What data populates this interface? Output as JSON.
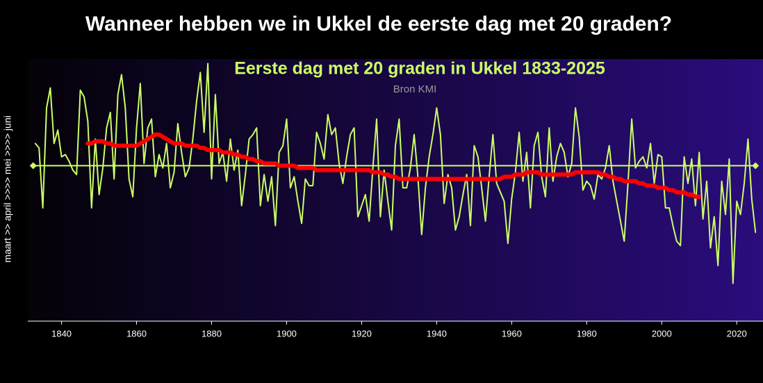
{
  "chart_data": {
    "type": "line",
    "title": "Wanneer hebben we in Ukkel de eerste dag met 20 graden?",
    "subtitle": "Eerste dag met 20 graden in Ukkel 1833-2025",
    "source": "Bron KMI",
    "y_label": "maart >> april >>>> mei >>>> juni",
    "xlim": [
      1831,
      2027
    ],
    "ylim": [
      47,
      165
    ],
    "xticks": [
      1840,
      1860,
      1880,
      1900,
      1920,
      1940,
      1960,
      1980,
      2000,
      2020
    ],
    "reference_line": 117,
    "reference_color": "#ccff66",
    "series": [
      {
        "color": "#ccff66",
        "x": [
          1833,
          1834,
          1835,
          1836,
          1837,
          1838,
          1839,
          1840,
          1841,
          1842,
          1843,
          1844,
          1845,
          1846,
          1847,
          1848,
          1849,
          1850,
          1851,
          1852,
          1853,
          1854,
          1855,
          1856,
          1857,
          1858,
          1859,
          1860,
          1861,
          1862,
          1863,
          1864,
          1865,
          1866,
          1867,
          1868,
          1869,
          1870,
          1871,
          1872,
          1873,
          1874,
          1875,
          1876,
          1877,
          1878,
          1879,
          1880,
          1881,
          1882,
          1883,
          1884,
          1885,
          1886,
          1887,
          1888,
          1889,
          1890,
          1891,
          1892,
          1893,
          1894,
          1895,
          1896,
          1897,
          1898,
          1899,
          1900,
          1901,
          1902,
          1903,
          1904,
          1905,
          1906,
          1907,
          1908,
          1909,
          1910,
          1911,
          1912,
          1913,
          1914,
          1915,
          1916,
          1917,
          1918,
          1919,
          1920,
          1921,
          1922,
          1923,
          1924,
          1925,
          1926,
          1927,
          1928,
          1929,
          1930,
          1931,
          1932,
          1933,
          1934,
          1935,
          1936,
          1937,
          1938,
          1939,
          1940,
          1941,
          1942,
          1943,
          1944,
          1945,
          1946,
          1947,
          1948,
          1949,
          1950,
          1951,
          1952,
          1953,
          1954,
          1955,
          1956,
          1957,
          1958,
          1959,
          1960,
          1961,
          1962,
          1963,
          1964,
          1965,
          1966,
          1967,
          1968,
          1969,
          1970,
          1971,
          1972,
          1973,
          1974,
          1975,
          1976,
          1977,
          1978,
          1979,
          1980,
          1981,
          1982,
          1983,
          1984,
          1985,
          1986,
          1987,
          1988,
          1989,
          1990,
          1991,
          1992,
          1993,
          1994,
          1995,
          1996,
          1997,
          1998,
          1999,
          2000,
          2001,
          2002,
          2003,
          2004,
          2005,
          2006,
          2007,
          2008,
          2009,
          2010,
          2011,
          2012,
          2013,
          2014,
          2015,
          2016,
          2017,
          2018,
          2019,
          2020,
          2021,
          2022,
          2023,
          2024,
          2025
        ],
        "values": [
          127,
          125,
          98,
          143,
          152,
          127,
          133,
          121,
          122,
          119,
          115,
          113,
          151,
          148,
          137,
          98,
          129,
          104,
          116,
          134,
          141,
          111,
          149,
          158,
          143,
          111,
          103,
          134,
          154,
          118,
          134,
          138,
          112,
          122,
          116,
          127,
          107,
          114,
          136,
          123,
          112,
          116,
          129,
          146,
          159,
          132,
          163,
          111,
          149,
          118,
          123,
          110,
          129,
          115,
          124,
          99,
          113,
          129,
          131,
          134,
          99,
          113,
          101,
          112,
          90,
          123,
          126,
          138,
          107,
          112,
          101,
          91,
          111,
          108,
          108,
          132,
          127,
          120,
          140,
          131,
          134,
          118,
          109,
          121,
          131,
          134,
          94,
          99,
          104,
          92,
          116,
          138,
          94,
          115,
          101,
          88,
          126,
          138,
          107,
          107,
          116,
          131,
          112,
          86,
          107,
          121,
          131,
          143,
          131,
          100,
          113,
          107,
          88,
          94,
          104,
          113,
          90,
          126,
          121,
          107,
          92,
          112,
          131,
          109,
          105,
          101,
          82,
          102,
          114,
          132,
          110,
          123,
          98,
          126,
          132,
          112,
          103,
          134,
          110,
          121,
          127,
          123,
          112,
          118,
          143,
          130,
          106,
          110,
          108,
          102,
          113,
          111,
          116,
          126,
          110,
          101,
          92,
          83,
          109,
          138,
          116,
          119,
          121,
          116,
          127,
          109,
          122,
          121,
          98,
          98,
          90,
          83,
          81,
          121,
          109,
          120,
          99,
          123,
          93,
          110,
          80,
          94,
          72,
          110,
          95,
          120,
          64,
          101,
          95,
          109,
          129,
          102,
          87
        ]
      },
      {
        "color": "#ff0000",
        "x": [
          1847,
          1848,
          1849,
          1850,
          1851,
          1852,
          1853,
          1854,
          1855,
          1856,
          1857,
          1858,
          1859,
          1860,
          1861,
          1862,
          1863,
          1864,
          1865,
          1866,
          1867,
          1868,
          1869,
          1870,
          1871,
          1872,
          1873,
          1874,
          1875,
          1876,
          1877,
          1878,
          1879,
          1880,
          1881,
          1882,
          1883,
          1884,
          1885,
          1886,
          1887,
          1888,
          1889,
          1890,
          1891,
          1892,
          1893,
          1894,
          1895,
          1896,
          1897,
          1898,
          1899,
          1900,
          1901,
          1902,
          1903,
          1904,
          1905,
          1906,
          1907,
          1908,
          1909,
          1910,
          1911,
          1912,
          1913,
          1914,
          1915,
          1916,
          1917,
          1918,
          1919,
          1920,
          1921,
          1922,
          1923,
          1924,
          1925,
          1926,
          1927,
          1928,
          1929,
          1930,
          1931,
          1932,
          1933,
          1934,
          1935,
          1936,
          1937,
          1938,
          1939,
          1940,
          1941,
          1942,
          1943,
          1944,
          1945,
          1946,
          1947,
          1948,
          1949,
          1950,
          1951,
          1952,
          1953,
          1954,
          1955,
          1956,
          1957,
          1958,
          1959,
          1960,
          1961,
          1962,
          1963,
          1964,
          1965,
          1966,
          1967,
          1968,
          1969,
          1970,
          1971,
          1972,
          1973,
          1974,
          1975,
          1976,
          1977,
          1978,
          1979,
          1980,
          1981,
          1982,
          1983,
          1984,
          1985,
          1986,
          1987,
          1988,
          1989,
          1990,
          1991,
          1992,
          1993,
          1994,
          1995,
          1996,
          1997,
          1998,
          1999,
          2000,
          2001,
          2002,
          2003,
          2004,
          2005,
          2006,
          2007,
          2008,
          2009,
          2010
        ],
        "values": [
          127,
          127,
          128,
          128,
          128,
          127,
          127,
          126,
          126,
          126,
          126,
          126,
          126,
          126,
          127,
          128,
          129,
          130,
          131,
          131,
          130,
          129,
          128,
          127,
          127,
          127,
          126,
          126,
          126,
          126,
          125,
          125,
          124,
          124,
          124,
          124,
          123,
          123,
          123,
          122,
          122,
          121,
          121,
          120,
          120,
          119,
          119,
          118,
          118,
          118,
          118,
          117,
          117,
          117,
          117,
          117,
          116,
          116,
          116,
          116,
          116,
          115,
          115,
          115,
          115,
          115,
          115,
          115,
          115,
          115,
          115,
          115,
          115,
          115,
          115,
          115,
          114,
          114,
          114,
          113,
          113,
          112,
          112,
          111,
          111,
          111,
          111,
          111,
          111,
          111,
          111,
          111,
          111,
          111,
          111,
          111,
          111,
          111,
          111,
          111,
          111,
          111,
          111,
          111,
          111,
          111,
          111,
          111,
          111,
          111,
          111,
          112,
          112,
          112,
          113,
          113,
          113,
          114,
          114,
          114,
          114,
          113,
          113,
          113,
          113,
          113,
          113,
          113,
          113,
          113,
          114,
          114,
          114,
          114,
          114,
          114,
          114,
          113,
          113,
          112,
          112,
          111,
          111,
          110,
          110,
          110,
          110,
          109,
          109,
          108,
          108,
          108,
          107,
          107,
          107,
          106,
          106,
          105,
          105,
          105,
          104,
          104,
          103,
          103
        ]
      }
    ]
  }
}
